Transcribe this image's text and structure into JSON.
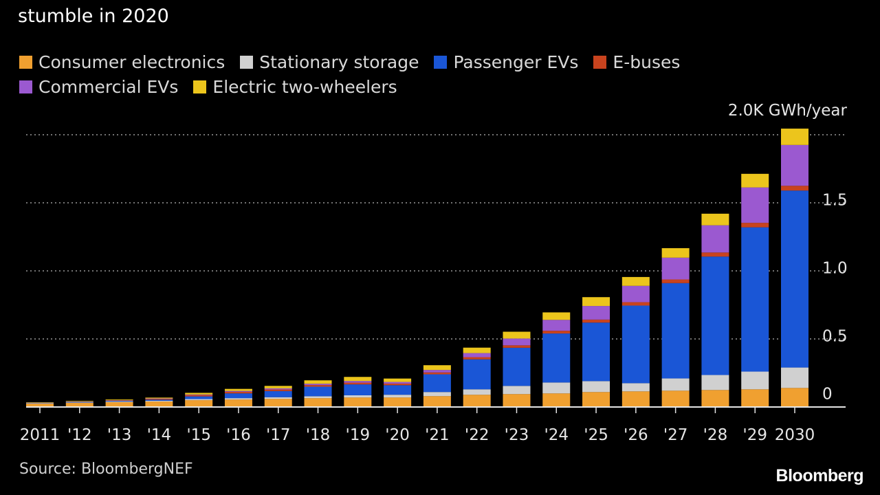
{
  "header": {
    "title": "stumble in 2020"
  },
  "legend": [
    {
      "label": "Consumer electronics",
      "color": "#f0a030"
    },
    {
      "label": "Stationary storage",
      "color": "#d0d0d0"
    },
    {
      "label": "Passenger EVs",
      "color": "#1a56d6"
    },
    {
      "label": "E-buses",
      "color": "#c8431e"
    },
    {
      "label": "Commercial EVs",
      "color": "#9b59d0"
    },
    {
      "label": "Electric two-wheelers",
      "color": "#ecc51c"
    }
  ],
  "footer": {
    "source": "Source: BloombergNEF",
    "brand": "Bloomberg"
  },
  "chart_data": {
    "type": "bar",
    "stacked": true,
    "title": "stumble in 2020",
    "xlabel": "",
    "ylabel": "GWh/year",
    "unit_label": "2.0K GWh/year",
    "ylim": [
      0,
      2.0
    ],
    "yticks": [
      0,
      0.5,
      1.0,
      1.5
    ],
    "ytick_labels": [
      "0",
      "0.5",
      "1.0",
      "1.5"
    ],
    "categories": [
      "2011",
      "'12",
      "'13",
      "'14",
      "'15",
      "'16",
      "'17",
      "'18",
      "'19",
      "'20",
      "'21",
      "'22",
      "'23",
      "'24",
      "'25",
      "'26",
      "'27",
      "'28",
      "'29",
      "2030"
    ],
    "series": [
      {
        "name": "Consumer electronics",
        "color": "#f0a030",
        "values": [
          0.025,
          0.03,
          0.035,
          0.04,
          0.05,
          0.055,
          0.06,
          0.065,
          0.07,
          0.07,
          0.08,
          0.09,
          0.095,
          0.1,
          0.11,
          0.115,
          0.12,
          0.125,
          0.13,
          0.14
        ]
      },
      {
        "name": "Stationary storage",
        "color": "#d0d0d0",
        "values": [
          0.003,
          0.004,
          0.005,
          0.006,
          0.008,
          0.01,
          0.012,
          0.014,
          0.016,
          0.02,
          0.03,
          0.04,
          0.06,
          0.08,
          0.08,
          0.06,
          0.09,
          0.11,
          0.13,
          0.15
        ]
      },
      {
        "name": "Passenger EVs",
        "color": "#1a56d6",
        "values": [
          0.002,
          0.004,
          0.005,
          0.008,
          0.02,
          0.035,
          0.045,
          0.07,
          0.08,
          0.07,
          0.13,
          0.22,
          0.28,
          0.36,
          0.43,
          0.57,
          0.7,
          0.87,
          1.06,
          1.3
        ]
      },
      {
        "name": "E-buses",
        "color": "#c8431e",
        "values": [
          0.001,
          0.002,
          0.003,
          0.006,
          0.01,
          0.012,
          0.012,
          0.012,
          0.013,
          0.012,
          0.014,
          0.016,
          0.018,
          0.02,
          0.022,
          0.025,
          0.027,
          0.03,
          0.033,
          0.035
        ]
      },
      {
        "name": "Commercial EVs",
        "color": "#9b59d0",
        "values": [
          0.001,
          0.001,
          0.002,
          0.003,
          0.004,
          0.006,
          0.008,
          0.01,
          0.012,
          0.012,
          0.018,
          0.03,
          0.05,
          0.08,
          0.1,
          0.12,
          0.16,
          0.2,
          0.26,
          0.3
        ]
      },
      {
        "name": "Electric two-wheelers",
        "color": "#ecc51c",
        "values": [
          0.003,
          0.004,
          0.005,
          0.006,
          0.012,
          0.015,
          0.018,
          0.025,
          0.03,
          0.025,
          0.035,
          0.04,
          0.05,
          0.055,
          0.065,
          0.065,
          0.07,
          0.085,
          0.1,
          0.12
        ]
      }
    ]
  }
}
